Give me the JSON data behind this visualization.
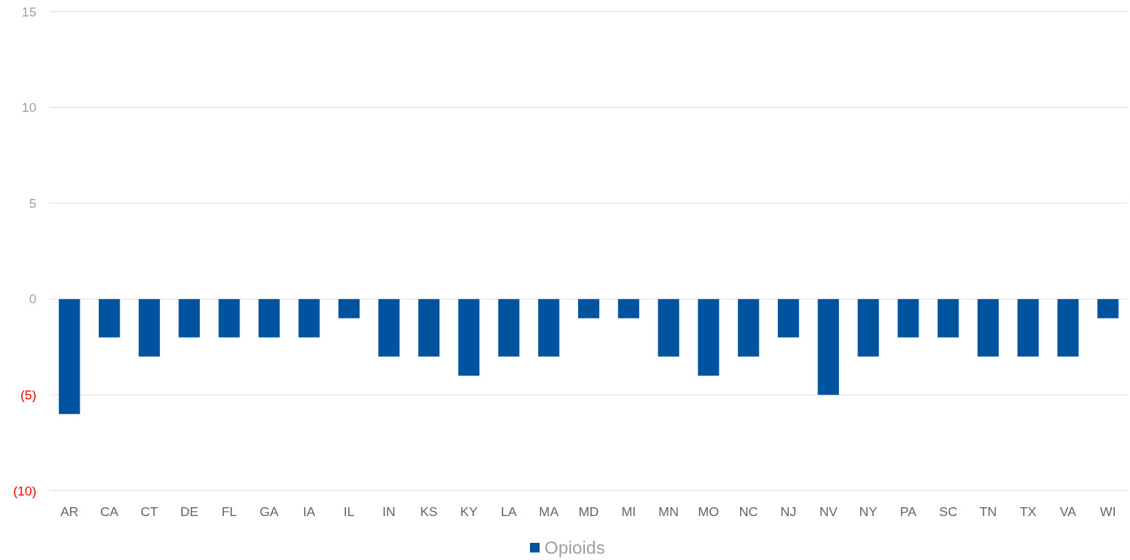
{
  "chart_data": {
    "type": "bar",
    "categories": [
      "AR",
      "CA",
      "CT",
      "DE",
      "FL",
      "GA",
      "IA",
      "IL",
      "IN",
      "KS",
      "KY",
      "LA",
      "MA",
      "MD",
      "MI",
      "MN",
      "MO",
      "NC",
      "NJ",
      "NV",
      "NY",
      "PA",
      "SC",
      "TN",
      "TX",
      "VA",
      "WI"
    ],
    "series": [
      {
        "name": "Opioids",
        "color": "#00539f",
        "values": [
          -6,
          -2,
          -3,
          -2,
          -2,
          -2,
          -2,
          -1,
          -3,
          -3,
          -4,
          -3,
          -3,
          -1,
          -1,
          -3,
          -4,
          -3,
          -2,
          -5,
          -3,
          -2,
          -2,
          -3,
          -3,
          -3,
          -1
        ]
      }
    ],
    "ylim": [
      -10,
      15
    ],
    "yticks": [
      {
        "value": -10,
        "label": "(10)"
      },
      {
        "value": -5,
        "label": "(5)"
      },
      0,
      5,
      10,
      15
    ],
    "grid": "y",
    "legend": "bottom"
  }
}
